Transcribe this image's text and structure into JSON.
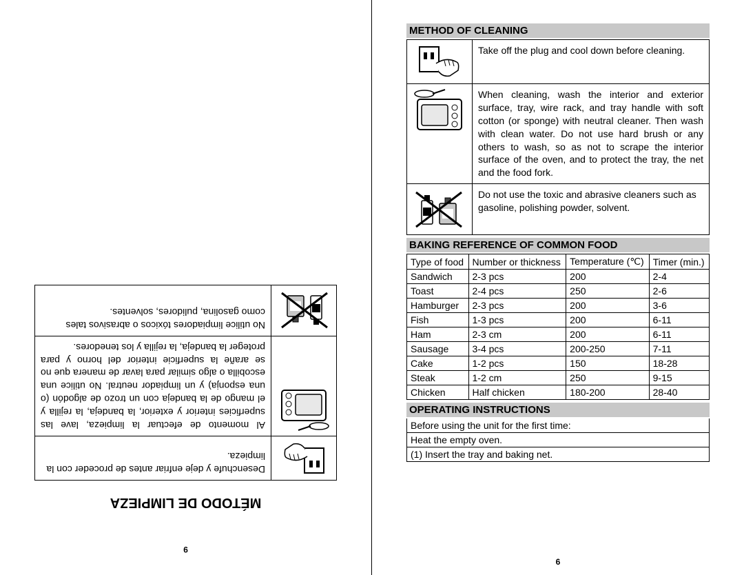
{
  "page_left": {
    "page_number": "9",
    "heading": "MÉTODO DE LIMPIEZA",
    "rows": [
      {
        "text": "Desenchufe y deje enfriar antes de proceder con la limpieza."
      },
      {
        "text": "Al momento de efectuar la limpieza, lave las superficies interior y exterior, la bandeja, la rejilla y el mango de la bandeja con un trozo de algodón (o una esponja) y un limpiador neutral. No utilice una escobilla o algo similar para lavar de manera que no se arañe la superficie interior del horno y para proteger la bandeja, la rejilla y los tenedores."
      },
      {
        "text": "No utilice limpiadores tóxicos o abrasivos tales como gasolina, pulidores, solventes."
      }
    ]
  },
  "page_right": {
    "page_number": "6",
    "cleaning_heading": "Method Of Cleaning",
    "cleaning_rows": [
      {
        "text": "Take off the plug and cool down before cleaning."
      },
      {
        "text": "When cleaning, wash the interior and exterior surface, tray, wire rack, and tray handle with soft cotton (or sponge) with neutral cleaner. Then wash with clean water. Do not use hard brush or any others to wash, so as not to scrape the interior surface of the oven, and to protect the tray, the net and the food fork."
      },
      {
        "text": "Do not use the toxic and abrasive cleaners such as gasoline, polishing powder, solvent."
      }
    ],
    "ref_heading": "Baking Reference Of Common Food",
    "ref_headers": [
      "Type of food",
      "Number or thickness",
      "Temperature (℃)",
      "Timer (min.)"
    ],
    "ref_rows": [
      [
        "Sandwich",
        "2-3 pcs",
        "200",
        "2-4"
      ],
      [
        "Toast",
        "2-4 pcs",
        "250",
        "2-6"
      ],
      [
        "Hamburger",
        "2-3 pcs",
        "200",
        "3-6"
      ],
      [
        "Fish",
        "1-3 pcs",
        "200",
        "6-11"
      ],
      [
        "Ham",
        "2-3 cm",
        "200",
        "6-11"
      ],
      [
        "Sausage",
        "3-4 pcs",
        "200-250",
        "7-11"
      ],
      [
        "Cake",
        "1-2 pcs",
        "150",
        "18-28"
      ],
      [
        "Steak",
        "1-2 cm",
        "250",
        "9-15"
      ],
      [
        "Chicken",
        "Half chicken",
        "180-200",
        "28-40"
      ]
    ],
    "op_heading": "Operating Instructions",
    "op_lines": [
      "Before using the unit for the first time:",
      "Heat the empty oven.",
      "(1) Insert the tray and baking net."
    ]
  },
  "icons": {
    "plug": "plug-hand",
    "oven": "oven-sponge",
    "bottles": "toxic-bottles-x"
  }
}
